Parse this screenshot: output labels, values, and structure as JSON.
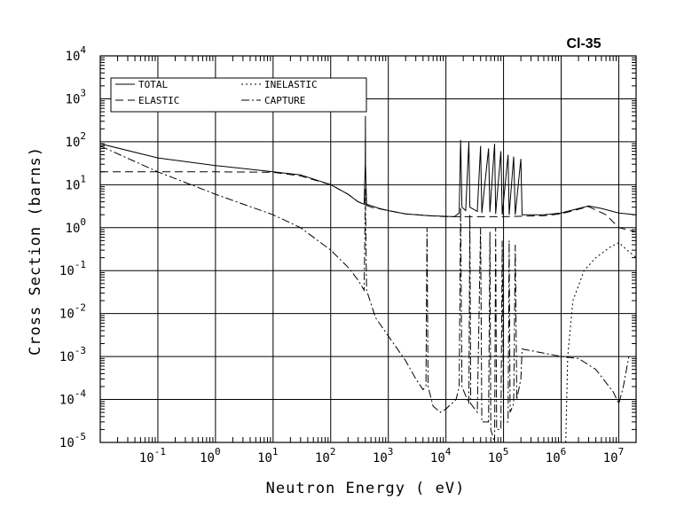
{
  "chart_data": {
    "type": "line",
    "title": "Cl-35",
    "xlabel": "Neutron Energy ( eV)",
    "ylabel": "Cross Section (barns)",
    "xscale": "log",
    "yscale": "log",
    "xlim": [
      0.01,
      20000000
    ],
    "ylim": [
      1e-05,
      10000
    ],
    "grid": true,
    "legend_position": "top-left",
    "x_ticks": [
      {
        "value": 0.1,
        "base": "10",
        "exp": "-1"
      },
      {
        "value": 1,
        "base": "10",
        "exp": "0"
      },
      {
        "value": 10,
        "base": "10",
        "exp": "1"
      },
      {
        "value": 100,
        "base": "10",
        "exp": "2"
      },
      {
        "value": 1000,
        "base": "10",
        "exp": "3"
      },
      {
        "value": 10000,
        "base": "10",
        "exp": "4"
      },
      {
        "value": 100000,
        "base": "10",
        "exp": "5"
      },
      {
        "value": 1000000,
        "base": "10",
        "exp": "6"
      },
      {
        "value": 10000000,
        "base": "10",
        "exp": "7"
      }
    ],
    "y_ticks": [
      {
        "value": 1e-05,
        "base": "10",
        "exp": "-5"
      },
      {
        "value": 0.0001,
        "base": "10",
        "exp": "-4"
      },
      {
        "value": 0.001,
        "base": "10",
        "exp": "-3"
      },
      {
        "value": 0.01,
        "base": "10",
        "exp": "-2"
      },
      {
        "value": 0.1,
        "base": "10",
        "exp": "-1"
      },
      {
        "value": 1,
        "base": "10",
        "exp": "0"
      },
      {
        "value": 10,
        "base": "10",
        "exp": "1"
      },
      {
        "value": 100,
        "base": "10",
        "exp": "2"
      },
      {
        "value": 1000,
        "base": "10",
        "exp": "3"
      },
      {
        "value": 10000,
        "base": "10",
        "exp": "4"
      }
    ],
    "series": [
      {
        "name": "TOTAL",
        "style": "solid",
        "points": [
          [
            0.01,
            90
          ],
          [
            0.1,
            42
          ],
          [
            1,
            28
          ],
          [
            10,
            20
          ],
          [
            30,
            17
          ],
          [
            100,
            10
          ],
          [
            200,
            6
          ],
          [
            300,
            4
          ],
          [
            380,
            3.5
          ],
          [
            398,
            30
          ],
          [
            400,
            400
          ],
          [
            402,
            30
          ],
          [
            420,
            3.5
          ],
          [
            700,
            2.8
          ],
          [
            1000,
            2.5
          ],
          [
            2000,
            2.1
          ],
          [
            5000,
            1.9
          ],
          [
            14000,
            1.8
          ],
          [
            17000,
            2.2
          ],
          [
            18000,
            110
          ],
          [
            19000,
            3
          ],
          [
            22000,
            2.5
          ],
          [
            25000,
            100
          ],
          [
            26000,
            3
          ],
          [
            35000,
            2.4
          ],
          [
            40000,
            80
          ],
          [
            42000,
            2.2
          ],
          [
            55000,
            70
          ],
          [
            58000,
            2.3
          ],
          [
            70000,
            90
          ],
          [
            73000,
            2.1
          ],
          [
            90000,
            60
          ],
          [
            95000,
            2
          ],
          [
            120000,
            50
          ],
          [
            125000,
            2
          ],
          [
            150000,
            45
          ],
          [
            160000,
            2
          ],
          [
            200000,
            40
          ],
          [
            210000,
            2
          ],
          [
            500000,
            2
          ],
          [
            1000000,
            2.2
          ],
          [
            3000000,
            3.2
          ],
          [
            5000000,
            2.8
          ],
          [
            10000000,
            2.2
          ],
          [
            20000000,
            2
          ]
        ]
      },
      {
        "name": "ELASTIC",
        "style": "dashed",
        "points": [
          [
            0.01,
            20
          ],
          [
            0.1,
            20
          ],
          [
            1,
            20
          ],
          [
            10,
            19.5
          ],
          [
            30,
            16
          ],
          [
            100,
            10
          ],
          [
            200,
            6
          ],
          [
            300,
            4
          ],
          [
            500,
            3
          ],
          [
            1000,
            2.5
          ],
          [
            2000,
            2.1
          ],
          [
            5000,
            1.9
          ],
          [
            10000,
            1.8
          ],
          [
            20000,
            1.8
          ],
          [
            100000,
            1.8
          ],
          [
            500000,
            1.9
          ],
          [
            1000000,
            2.1
          ],
          [
            3000000,
            3.1
          ],
          [
            6000000,
            2
          ],
          [
            10000000,
            1
          ],
          [
            20000000,
            0.8
          ]
        ]
      },
      {
        "name": "INELASTIC",
        "style": "dotted",
        "points": [
          [
            1200000,
            1e-05
          ],
          [
            1300000,
            0.001
          ],
          [
            1600000,
            0.02
          ],
          [
            2500000,
            0.1
          ],
          [
            4000000,
            0.2
          ],
          [
            7000000,
            0.35
          ],
          [
            10000000,
            0.45
          ],
          [
            14000000,
            0.3
          ],
          [
            20000000,
            0.2
          ]
        ]
      },
      {
        "name": "CAPTURE",
        "style": "dashdot",
        "points": [
          [
            0.01,
            80
          ],
          [
            0.1,
            20
          ],
          [
            1,
            6
          ],
          [
            10,
            2
          ],
          [
            30,
            1
          ],
          [
            100,
            0.3
          ],
          [
            200,
            0.12
          ],
          [
            300,
            0.06
          ],
          [
            380,
            0.035
          ],
          [
            398,
            3
          ],
          [
            400,
            8
          ],
          [
            402,
            3
          ],
          [
            420,
            0.035
          ],
          [
            600,
            0.008
          ],
          [
            1000,
            0.003
          ],
          [
            2000,
            0.0008
          ],
          [
            3000,
            0.0003
          ],
          [
            4000,
            0.00017
          ],
          [
            4500,
            0.0002
          ],
          [
            4700,
            1
          ],
          [
            4900,
            0.0002
          ],
          [
            6000,
            7e-05
          ],
          [
            8000,
            5e-05
          ],
          [
            10000,
            6e-05
          ],
          [
            15000,
            0.0001
          ],
          [
            17000,
            0.0002
          ],
          [
            18000,
            3
          ],
          [
            19000,
            0.0002
          ],
          [
            25000,
            8e-05
          ],
          [
            26000,
            2
          ],
          [
            27000,
            8e-05
          ],
          [
            35000,
            5e-05
          ],
          [
            40000,
            1
          ],
          [
            42000,
            3e-05
          ],
          [
            55000,
            3e-05
          ],
          [
            58000,
            0.8
          ],
          [
            60000,
            2e-05
          ],
          [
            70000,
            1e-05
          ],
          [
            73000,
            1
          ],
          [
            76000,
            2e-05
          ],
          [
            90000,
            2e-05
          ],
          [
            95000,
            0.5
          ],
          [
            100000,
            3e-05
          ],
          [
            120000,
            3e-05
          ],
          [
            125000,
            0.5
          ],
          [
            130000,
            5e-05
          ],
          [
            150000,
            8e-05
          ],
          [
            160000,
            0.4
          ],
          [
            170000,
            0.0001
          ],
          [
            200000,
            0.0003
          ],
          [
            210000,
            0.0015
          ],
          [
            500000,
            0.0012
          ],
          [
            1000000,
            0.001
          ],
          [
            2000000,
            0.0009
          ],
          [
            4000000,
            0.0005
          ],
          [
            8000000,
            0.00015
          ],
          [
            10000000,
            8e-05
          ],
          [
            12000000,
            0.0002
          ],
          [
            15000000,
            0.001
          ]
        ]
      }
    ]
  }
}
